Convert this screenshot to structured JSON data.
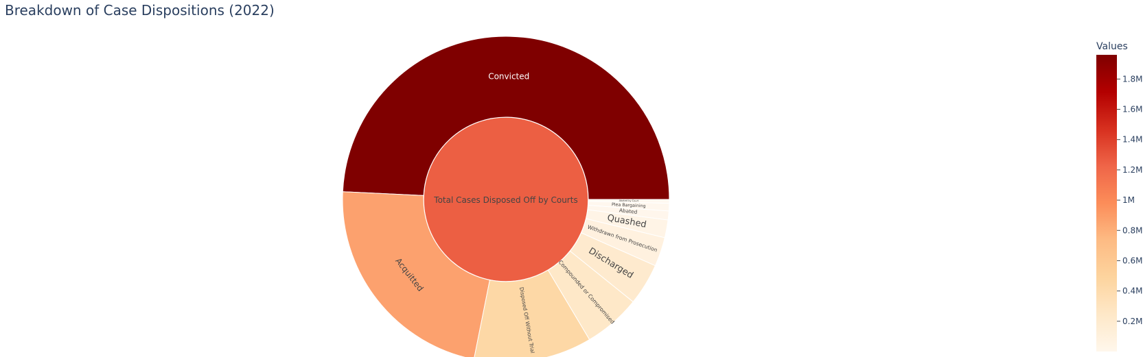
{
  "chart_data": {
    "type": "sunburst",
    "title": "Breakdown of Case Dispositions (2022)",
    "root": {
      "label": "Total Cases Disposed Off by Courts",
      "color": "#ec5f43"
    },
    "children": [
      {
        "label": "Convicted",
        "value": 1960000,
        "color": "#7f0000",
        "text_color": "#ffffff"
      },
      {
        "label": "Acquitted",
        "value": 900000,
        "color": "#fca16e",
        "text_color": "#444444"
      },
      {
        "label": "Disposed Off Without Trial",
        "value": 465000,
        "color": "#fdd8a6",
        "text_color": "#444444"
      },
      {
        "label": "Compounded or Compromised",
        "value": 225000,
        "color": "#fee8c8",
        "text_color": "#444444"
      },
      {
        "label": "Discharged",
        "value": 165000,
        "color": "#feeace",
        "text_color": "#444444"
      },
      {
        "label": "Withdrawn from Prosecution",
        "value": 115000,
        "color": "#fff1df",
        "text_color": "#444444"
      },
      {
        "label": "Quashed",
        "value": 70000,
        "color": "#fff4e6",
        "text_color": "#444444"
      },
      {
        "label": "Abated",
        "value": 35000,
        "color": "#fff6ec",
        "text_color": "#444444"
      },
      {
        "label": "Plea Bargaining",
        "value": 30000,
        "color": "#fff7ee",
        "text_color": "#444444"
      },
      {
        "label": "Abated by Court",
        "value": 15000,
        "color": "#fff8f0",
        "text_color": "#444444"
      }
    ],
    "colorbar": {
      "title": "Values",
      "tick_labels": [
        "0.2M",
        "0.4M",
        "0.6M",
        "0.8M",
        "1M",
        "1.2M",
        "1.4M",
        "1.6M",
        "1.8M"
      ],
      "tick_values": [
        200000,
        400000,
        600000,
        800000,
        1000000,
        1200000,
        1400000,
        1600000,
        1800000
      ],
      "range": [
        0,
        1960000
      ],
      "colorscale": [
        "#fff7ec",
        "#fee8c8",
        "#fdd49e",
        "#fdbb84",
        "#fc8d59",
        "#ef6548",
        "#d7301f",
        "#b30000",
        "#7f0000"
      ]
    }
  }
}
